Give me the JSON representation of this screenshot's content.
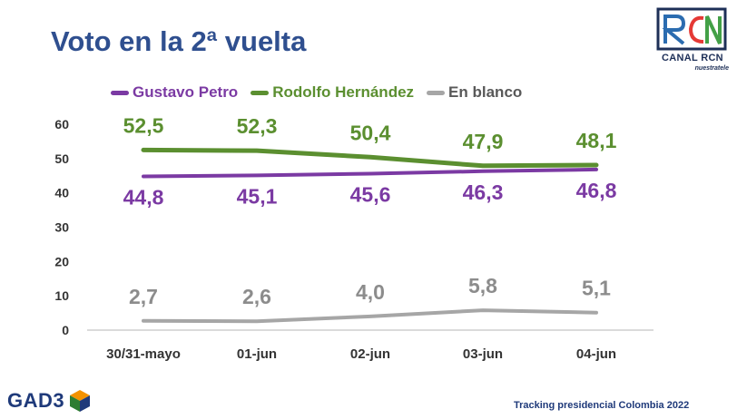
{
  "title": "Voto en la 2ª vuelta",
  "brand": {
    "canal": "CANAL RCN",
    "tagline": "nuestratele",
    "monogram": "RCN"
  },
  "pollster": {
    "name": "GAD3"
  },
  "footer": "Tracking presidencial Colombia 2022",
  "chart_data": {
    "type": "line",
    "categories": [
      "30/31-mayo",
      "01-jun",
      "02-jun",
      "03-jun",
      "04-jun"
    ],
    "ylim": [
      0,
      60
    ],
    "yticks": [
      "0",
      "10",
      "20",
      "30",
      "40",
      "50",
      "60"
    ],
    "grid": false,
    "legend_position": "top",
    "series": [
      {
        "name": "Gustavo Petro",
        "color": "#7b3aa3",
        "values": [
          44.8,
          45.1,
          45.6,
          46.3,
          46.8
        ],
        "labels": [
          "44,8",
          "45,1",
          "45,6",
          "46,3",
          "46,8"
        ]
      },
      {
        "name": "Rodolfo Hernández",
        "color": "#5b8f30",
        "values": [
          52.5,
          52.3,
          50.4,
          47.9,
          48.1
        ],
        "labels": [
          "52,5",
          "52,3",
          "50,4",
          "47,9",
          "48,1"
        ]
      },
      {
        "name": "En blanco",
        "color": "#a6a6a6",
        "values": [
          2.7,
          2.6,
          4.0,
          5.8,
          5.1
        ],
        "labels": [
          "2,7",
          "2,6",
          "4,0",
          "5,8",
          "5,1"
        ]
      }
    ]
  }
}
